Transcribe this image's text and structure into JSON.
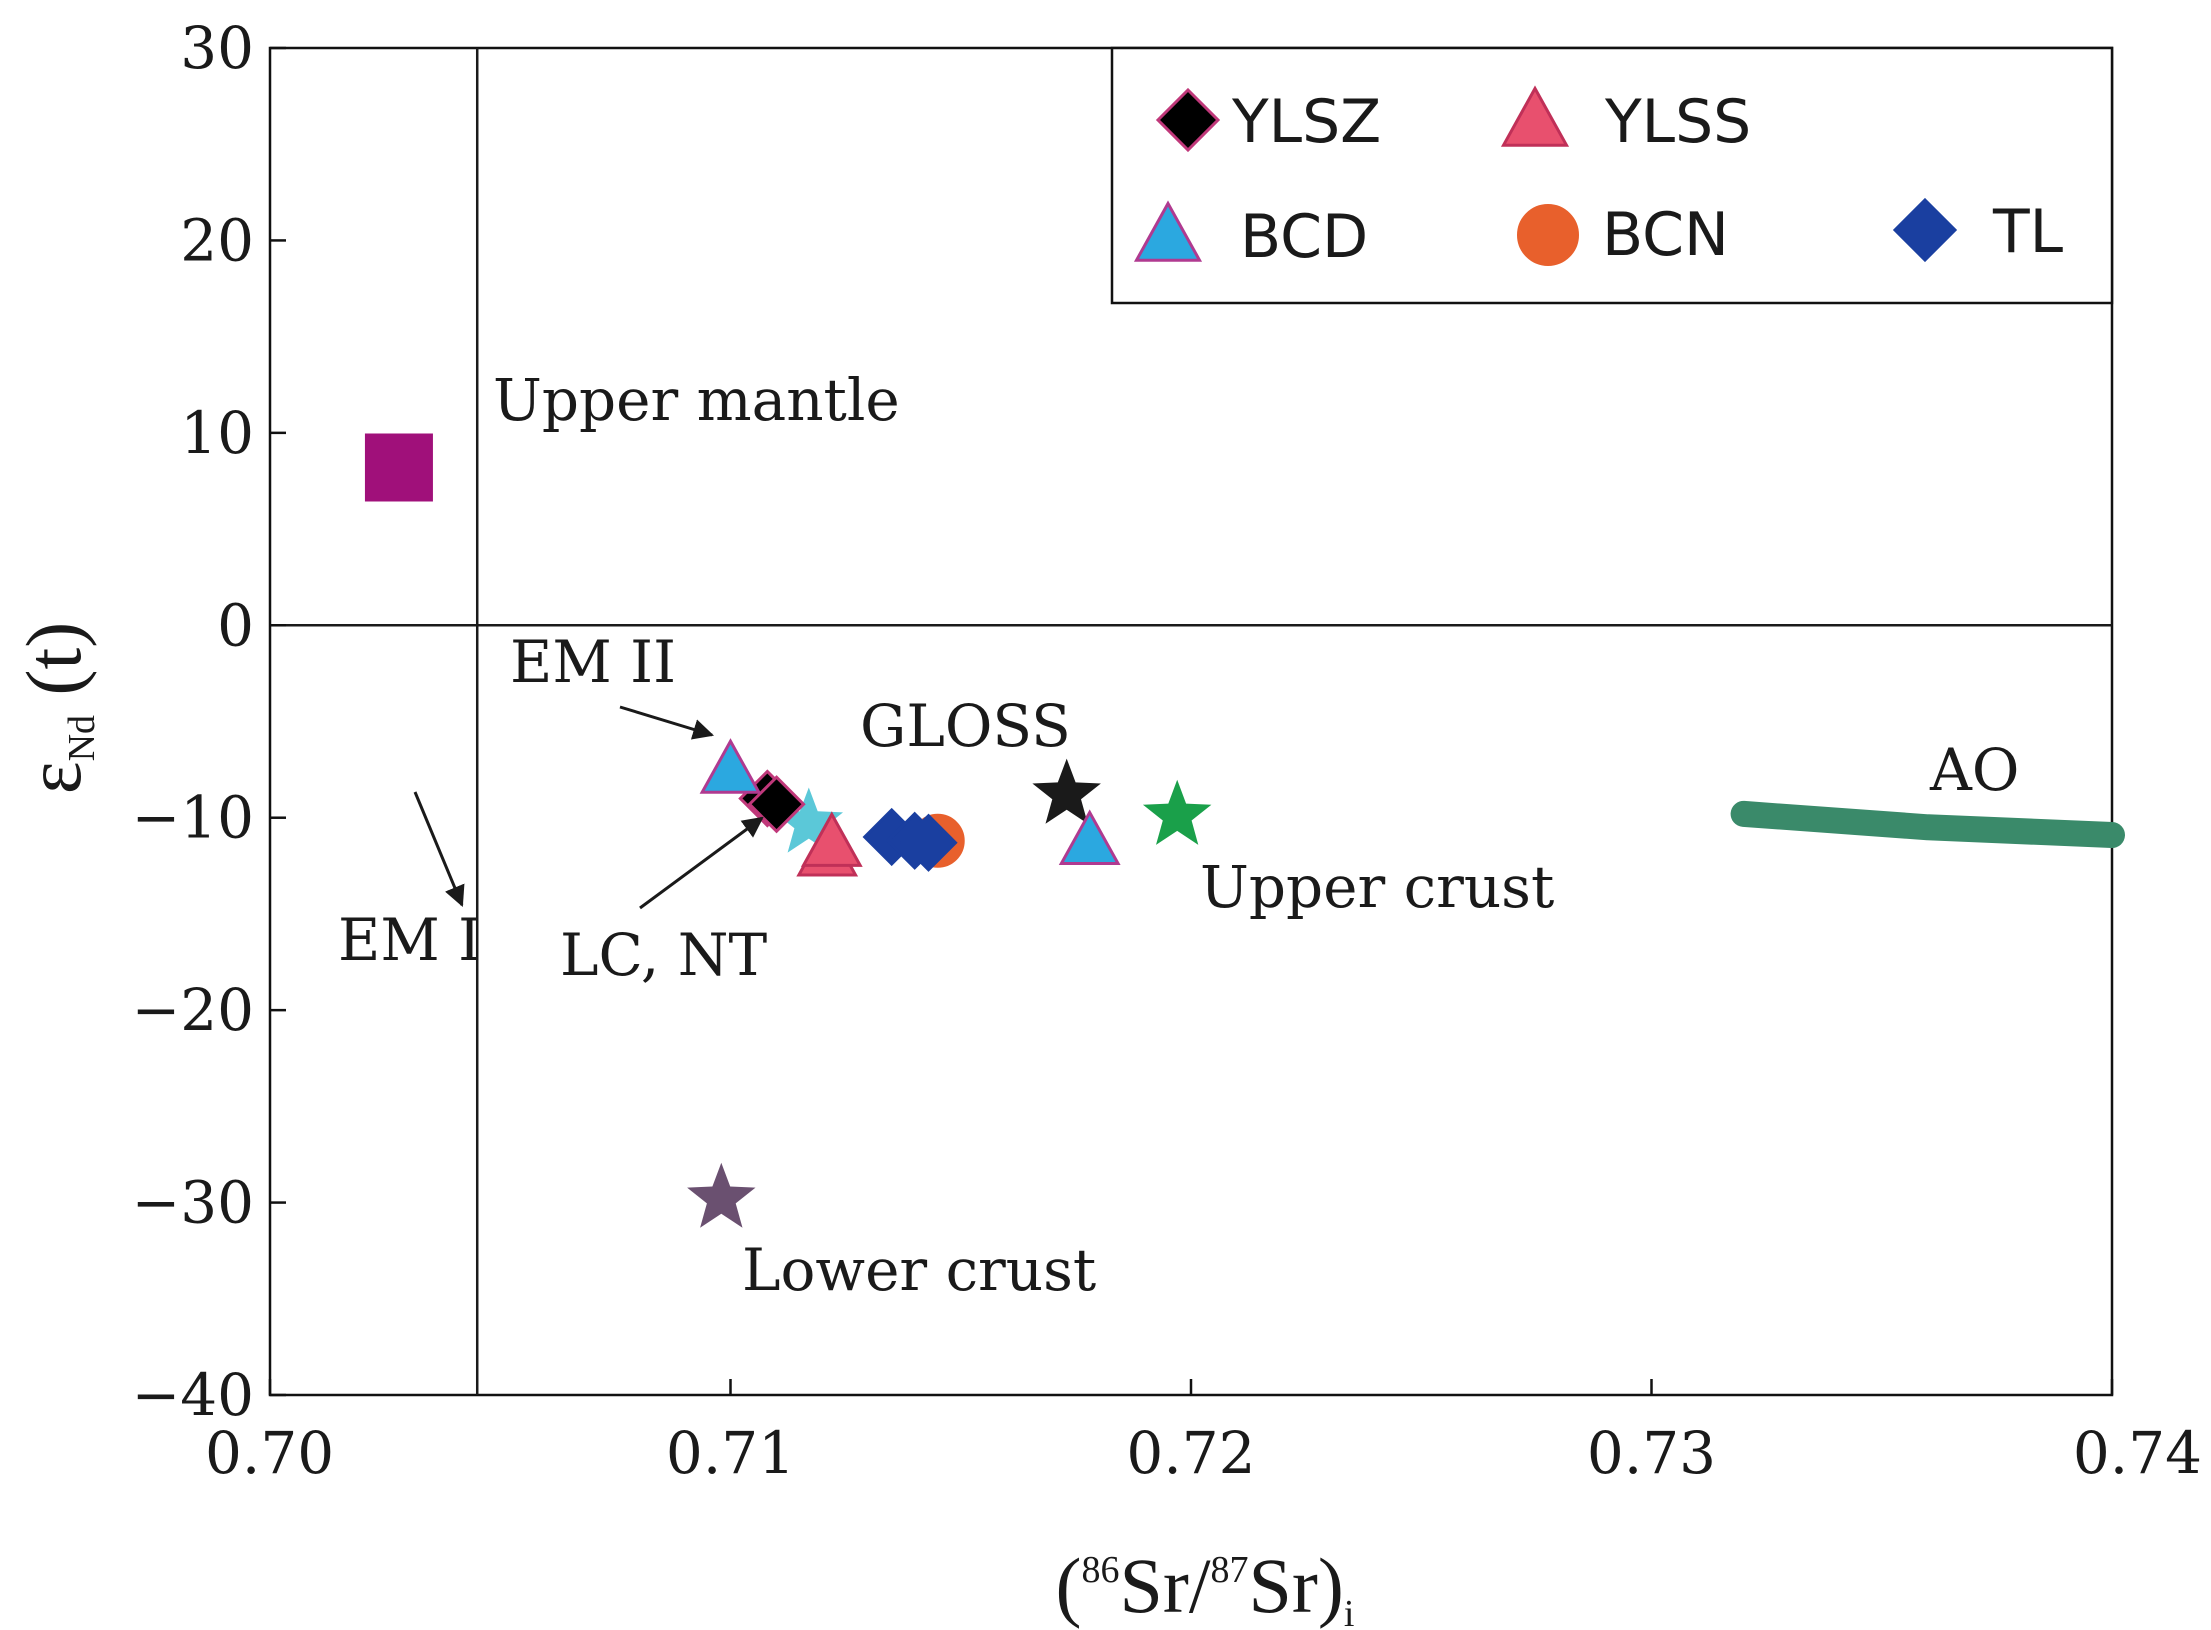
{
  "chart_data": {
    "type": "scatter",
    "title": "",
    "xlabel": {
      "open": "(",
      "sup1": "86",
      "mid": "Sr/",
      "sup2": "87",
      "end": "Sr)",
      "sub": "i"
    },
    "ylabel": {
      "main": "ε",
      "sub": "Nd",
      "end": " (t)"
    },
    "xlim": [
      0.7,
      0.74
    ],
    "ylim": [
      -40,
      30
    ],
    "xticks": [
      0.7,
      0.71,
      0.72,
      0.73,
      0.74
    ],
    "xtick_labels": [
      "0.70",
      "0.71",
      "0.72",
      "0.73",
      "0.74"
    ],
    "yticks": [
      30,
      20,
      10,
      0,
      -10,
      -20,
      -30,
      -40
    ],
    "ytick_labels": [
      "30",
      "20",
      "10",
      "0",
      "−10",
      "−20",
      "−30",
      "−40"
    ],
    "reference_lines": [
      {
        "orientation": "vertical",
        "x": 0.7045
      },
      {
        "orientation": "horizontal",
        "y": 0
      }
    ],
    "series": [
      {
        "name": "YLSZ",
        "marker": "diamond",
        "color": "#000000",
        "edge": "#c0387a",
        "points": [
          {
            "x": 0.7108,
            "y": -9.0
          },
          {
            "x": 0.711,
            "y": -9.3
          }
        ]
      },
      {
        "name": "YLSS",
        "marker": "triangle",
        "color": "#e8506e",
        "edge": "#c03058",
        "points": [
          {
            "x": 0.7121,
            "y": -11.8
          },
          {
            "x": 0.7122,
            "y": -11.3
          }
        ]
      },
      {
        "name": "BCD",
        "marker": "triangle",
        "color": "#2ba8e0",
        "edge": "#b03a90",
        "points": [
          {
            "x": 0.71,
            "y": -7.5
          },
          {
            "x": 0.7178,
            "y": -11.2
          }
        ]
      },
      {
        "name": "BCN",
        "marker": "circle",
        "color": "#e8602c",
        "edge": "#e8602c",
        "points": [
          {
            "x": 0.7145,
            "y": -11.2
          }
        ]
      },
      {
        "name": "TL",
        "marker": "diamond",
        "color": "#1a3fa0",
        "edge": "#1a3fa0",
        "points": [
          {
            "x": 0.7135,
            "y": -11.0
          },
          {
            "x": 0.714,
            "y": -11.2
          },
          {
            "x": 0.7143,
            "y": -11.3
          }
        ]
      }
    ],
    "reference_points": [
      {
        "name": "Upper mantle",
        "marker": "square",
        "color": "#a0107a",
        "x": 0.7028,
        "y": 8.2
      },
      {
        "name": "LC, NT",
        "marker": "star",
        "color": "#5bc8d8",
        "x": 0.7117,
        "y": -10.3
      },
      {
        "name": "GLOSS",
        "marker": "star",
        "color": "#1a1a1a",
        "x": 0.7173,
        "y": -8.8
      },
      {
        "name": "Upper crust",
        "marker": "star",
        "color": "#1aa04a",
        "x": 0.7197,
        "y": -9.9
      },
      {
        "name": "Lower crust",
        "marker": "star",
        "color": "#6a5070",
        "x": 0.7098,
        "y": -29.8
      }
    ],
    "ao_field": {
      "name": "AO",
      "color": "#3a8a6a",
      "points": [
        {
          "x": 0.732,
          "y": -9.8
        },
        {
          "x": 0.736,
          "y": -10.5
        },
        {
          "x": 0.74,
          "y": -10.9
        }
      ]
    },
    "annotations": [
      {
        "text": "Upper mantle"
      },
      {
        "text": "EM II"
      },
      {
        "text": "GLOSS"
      },
      {
        "text": "EM I"
      },
      {
        "text": "LC, NT"
      },
      {
        "text": "Upper crust"
      },
      {
        "text": "AO"
      },
      {
        "text": "Lower crust"
      }
    ],
    "legend": {
      "position": "top-right",
      "entries": [
        "YLSZ",
        "YLSS",
        "BCD",
        "BCN",
        "TL"
      ]
    },
    "grid": false
  }
}
